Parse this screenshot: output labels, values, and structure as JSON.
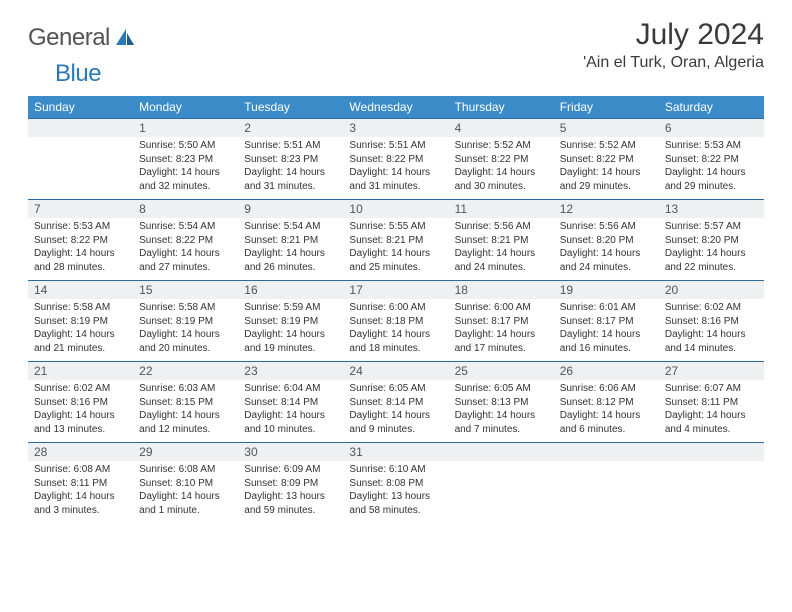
{
  "logo": {
    "general": "General",
    "blue": "Blue"
  },
  "header": {
    "month_title": "July 2024",
    "location": "'Ain el Turk, Oran, Algeria"
  },
  "colors": {
    "header_bg": "#3b8bc8",
    "header_text": "#ffffff",
    "daynum_bg": "#eef0f1",
    "row_border": "#2a6aa0",
    "body_text": "#333333",
    "logo_gray": "#545454",
    "logo_blue": "#2a7ab8"
  },
  "weekday_labels": [
    "Sunday",
    "Monday",
    "Tuesday",
    "Wednesday",
    "Thursday",
    "Friday",
    "Saturday"
  ],
  "weeks": [
    [
      {
        "day": "",
        "detail": ""
      },
      {
        "day": "1",
        "detail": "Sunrise: 5:50 AM\nSunset: 8:23 PM\nDaylight: 14 hours and 32 minutes."
      },
      {
        "day": "2",
        "detail": "Sunrise: 5:51 AM\nSunset: 8:23 PM\nDaylight: 14 hours and 31 minutes."
      },
      {
        "day": "3",
        "detail": "Sunrise: 5:51 AM\nSunset: 8:22 PM\nDaylight: 14 hours and 31 minutes."
      },
      {
        "day": "4",
        "detail": "Sunrise: 5:52 AM\nSunset: 8:22 PM\nDaylight: 14 hours and 30 minutes."
      },
      {
        "day": "5",
        "detail": "Sunrise: 5:52 AM\nSunset: 8:22 PM\nDaylight: 14 hours and 29 minutes."
      },
      {
        "day": "6",
        "detail": "Sunrise: 5:53 AM\nSunset: 8:22 PM\nDaylight: 14 hours and 29 minutes."
      }
    ],
    [
      {
        "day": "7",
        "detail": "Sunrise: 5:53 AM\nSunset: 8:22 PM\nDaylight: 14 hours and 28 minutes."
      },
      {
        "day": "8",
        "detail": "Sunrise: 5:54 AM\nSunset: 8:22 PM\nDaylight: 14 hours and 27 minutes."
      },
      {
        "day": "9",
        "detail": "Sunrise: 5:54 AM\nSunset: 8:21 PM\nDaylight: 14 hours and 26 minutes."
      },
      {
        "day": "10",
        "detail": "Sunrise: 5:55 AM\nSunset: 8:21 PM\nDaylight: 14 hours and 25 minutes."
      },
      {
        "day": "11",
        "detail": "Sunrise: 5:56 AM\nSunset: 8:21 PM\nDaylight: 14 hours and 24 minutes."
      },
      {
        "day": "12",
        "detail": "Sunrise: 5:56 AM\nSunset: 8:20 PM\nDaylight: 14 hours and 24 minutes."
      },
      {
        "day": "13",
        "detail": "Sunrise: 5:57 AM\nSunset: 8:20 PM\nDaylight: 14 hours and 22 minutes."
      }
    ],
    [
      {
        "day": "14",
        "detail": "Sunrise: 5:58 AM\nSunset: 8:19 PM\nDaylight: 14 hours and 21 minutes."
      },
      {
        "day": "15",
        "detail": "Sunrise: 5:58 AM\nSunset: 8:19 PM\nDaylight: 14 hours and 20 minutes."
      },
      {
        "day": "16",
        "detail": "Sunrise: 5:59 AM\nSunset: 8:19 PM\nDaylight: 14 hours and 19 minutes."
      },
      {
        "day": "17",
        "detail": "Sunrise: 6:00 AM\nSunset: 8:18 PM\nDaylight: 14 hours and 18 minutes."
      },
      {
        "day": "18",
        "detail": "Sunrise: 6:00 AM\nSunset: 8:17 PM\nDaylight: 14 hours and 17 minutes."
      },
      {
        "day": "19",
        "detail": "Sunrise: 6:01 AM\nSunset: 8:17 PM\nDaylight: 14 hours and 16 minutes."
      },
      {
        "day": "20",
        "detail": "Sunrise: 6:02 AM\nSunset: 8:16 PM\nDaylight: 14 hours and 14 minutes."
      }
    ],
    [
      {
        "day": "21",
        "detail": "Sunrise: 6:02 AM\nSunset: 8:16 PM\nDaylight: 14 hours and 13 minutes."
      },
      {
        "day": "22",
        "detail": "Sunrise: 6:03 AM\nSunset: 8:15 PM\nDaylight: 14 hours and 12 minutes."
      },
      {
        "day": "23",
        "detail": "Sunrise: 6:04 AM\nSunset: 8:14 PM\nDaylight: 14 hours and 10 minutes."
      },
      {
        "day": "24",
        "detail": "Sunrise: 6:05 AM\nSunset: 8:14 PM\nDaylight: 14 hours and 9 minutes."
      },
      {
        "day": "25",
        "detail": "Sunrise: 6:05 AM\nSunset: 8:13 PM\nDaylight: 14 hours and 7 minutes."
      },
      {
        "day": "26",
        "detail": "Sunrise: 6:06 AM\nSunset: 8:12 PM\nDaylight: 14 hours and 6 minutes."
      },
      {
        "day": "27",
        "detail": "Sunrise: 6:07 AM\nSunset: 8:11 PM\nDaylight: 14 hours and 4 minutes."
      }
    ],
    [
      {
        "day": "28",
        "detail": "Sunrise: 6:08 AM\nSunset: 8:11 PM\nDaylight: 14 hours and 3 minutes."
      },
      {
        "day": "29",
        "detail": "Sunrise: 6:08 AM\nSunset: 8:10 PM\nDaylight: 14 hours and 1 minute."
      },
      {
        "day": "30",
        "detail": "Sunrise: 6:09 AM\nSunset: 8:09 PM\nDaylight: 13 hours and 59 minutes."
      },
      {
        "day": "31",
        "detail": "Sunrise: 6:10 AM\nSunset: 8:08 PM\nDaylight: 13 hours and 58 minutes."
      },
      {
        "day": "",
        "detail": ""
      },
      {
        "day": "",
        "detail": ""
      },
      {
        "day": "",
        "detail": ""
      }
    ]
  ]
}
